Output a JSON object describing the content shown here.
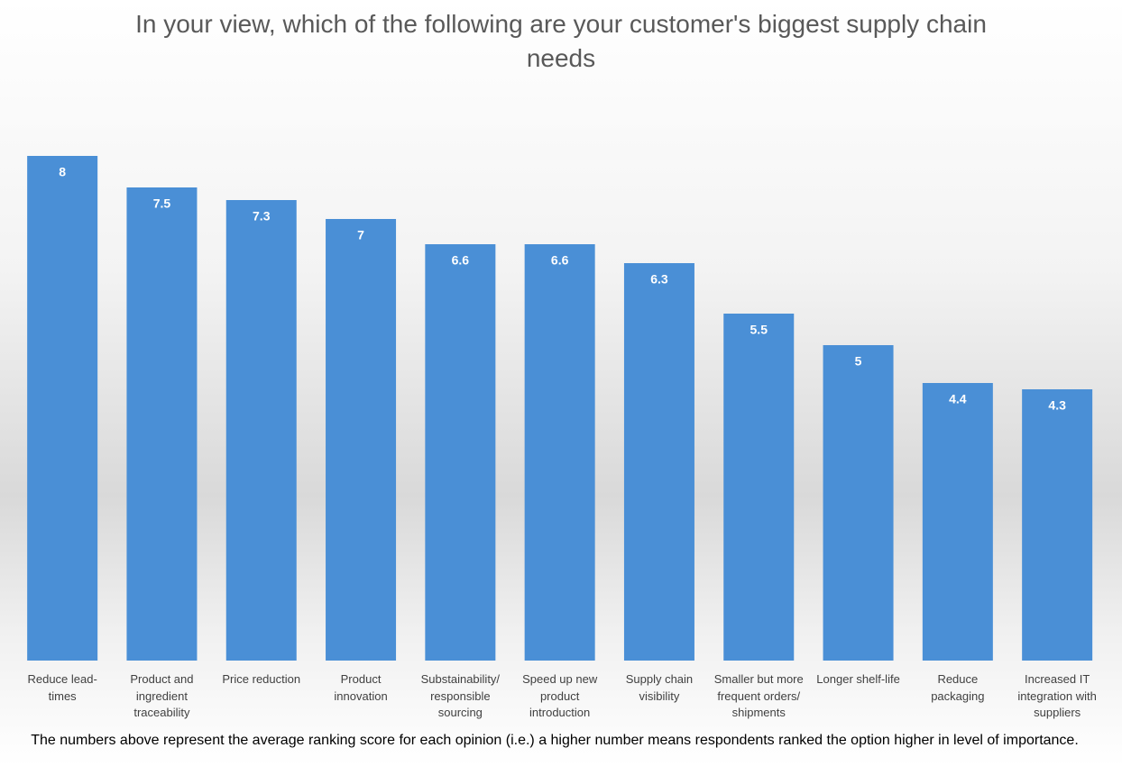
{
  "chart_data": {
    "type": "bar",
    "title": "In your view, which of the following are your customer's biggest supply chain needs",
    "categories": [
      "Reduce lead-times",
      "Product and ingredient traceability",
      "Price reduction",
      "Product innovation",
      "Substainability/ responsible sourcing",
      "Speed up new product introduction",
      "Supply chain visibility",
      "Smaller but more frequent orders/ shipments",
      "Longer shelf-life",
      "Reduce packaging",
      "Increased IT integration with suppliers"
    ],
    "values": [
      8,
      7.5,
      7.3,
      7,
      6.6,
      6.6,
      6.3,
      5.5,
      5,
      4.4,
      4.3
    ],
    "color": "#4a8fd6",
    "ylim": [
      0,
      8
    ],
    "note": "The numbers above represent the average ranking score for each opinion (i.e.) a higher number means respondents ranked the option higher in level of importance."
  }
}
